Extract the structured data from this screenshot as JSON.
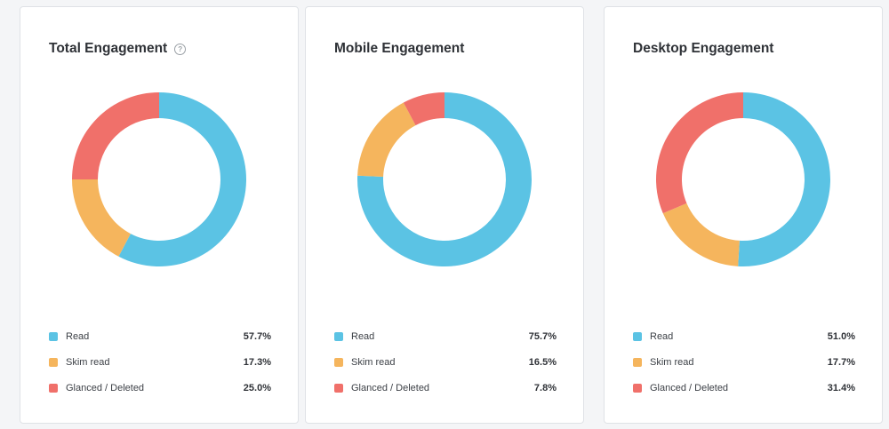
{
  "colors": {
    "read": "#5bc3e4",
    "skim": "#f5b55d",
    "glanced": "#f0706a"
  },
  "help_icon": "question-circle-icon",
  "chart_data": [
    {
      "type": "pie",
      "title": "Total Engagement",
      "categories": [
        "Read",
        "Skim read",
        "Glanced / Deleted"
      ],
      "values": [
        57.7,
        17.3,
        25.0
      ],
      "labels": [
        "57.7%",
        "17.3%",
        "25.0%"
      ]
    },
    {
      "type": "pie",
      "title": "Mobile Engagement",
      "categories": [
        "Read",
        "Skim read",
        "Glanced / Deleted"
      ],
      "values": [
        75.7,
        16.5,
        7.8
      ],
      "labels": [
        "75.7%",
        "16.5%",
        "7.8%"
      ]
    },
    {
      "type": "pie",
      "title": "Desktop Engagement",
      "categories": [
        "Read",
        "Skim read",
        "Glanced / Deleted"
      ],
      "values": [
        51.0,
        17.7,
        31.4
      ],
      "labels": [
        "51.0%",
        "17.7%",
        "31.4%"
      ]
    }
  ]
}
